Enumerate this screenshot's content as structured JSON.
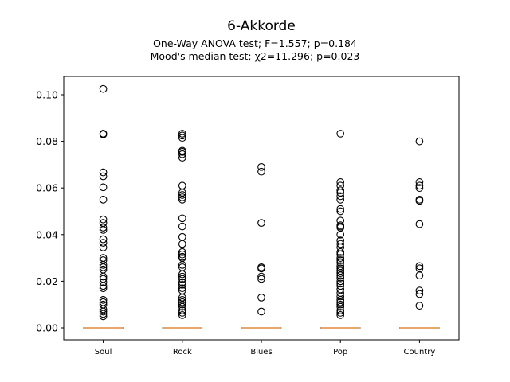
{
  "chart_data": {
    "type": "box",
    "title": "6-Akkorde",
    "subtitle_lines": [
      "One-Way ANOVA test; F=1.557; p=0.184",
      "Mood's median test; χ2=11.296; p=0.023"
    ],
    "categories": [
      "Soul",
      "Rock",
      "Blues",
      "Pop",
      "Country"
    ],
    "ylim": [
      -0.005,
      0.107
    ],
    "yticks": [
      0.0,
      0.02,
      0.04,
      0.06,
      0.08,
      0.1
    ],
    "ytick_labels": [
      "0.00",
      "0.02",
      "0.04",
      "0.06",
      "0.08",
      "0.10"
    ],
    "grid": false,
    "median_color": "#e08a3c",
    "boxes": [
      {
        "category": "Soul",
        "q1": 0,
        "median": 0,
        "q3": 0,
        "whisker_low": 0,
        "whisker_high": 0,
        "outliers": [
          0.1025,
          0.0833,
          0.083,
          0.0667,
          0.065,
          0.0603,
          0.055,
          0.0465,
          0.045,
          0.043,
          0.042,
          0.038,
          0.0365,
          0.0345,
          0.03,
          0.029,
          0.027,
          0.026,
          0.025,
          0.022,
          0.021,
          0.0195,
          0.018,
          0.017,
          0.012,
          0.011,
          0.01,
          0.008,
          0.007,
          0.006,
          0.005
        ]
      },
      {
        "category": "Rock",
        "q1": 0,
        "median": 0,
        "q3": 0,
        "whisker_low": 0,
        "whisker_high": 0,
        "outliers": [
          0.0833,
          0.0825,
          0.0815,
          0.076,
          0.0755,
          0.0745,
          0.073,
          0.061,
          0.058,
          0.057,
          0.056,
          0.055,
          0.047,
          0.0435,
          0.039,
          0.036,
          0.0325,
          0.0315,
          0.0305,
          0.03,
          0.027,
          0.026,
          0.023,
          0.022,
          0.021,
          0.0195,
          0.0185,
          0.017,
          0.016,
          0.013,
          0.012,
          0.011,
          0.01,
          0.009,
          0.0075,
          0.0065,
          0.0055
        ]
      },
      {
        "category": "Blues",
        "q1": 0,
        "median": 0,
        "q3": 0,
        "whisker_low": 0,
        "whisker_high": 0,
        "outliers": [
          0.069,
          0.067,
          0.045,
          0.026,
          0.0255,
          0.022,
          0.021,
          0.013,
          0.007
        ]
      },
      {
        "category": "Pop",
        "q1": 0,
        "median": 0,
        "q3": 0,
        "whisker_low": 0,
        "whisker_high": 0,
        "outliers": [
          0.0833,
          0.0625,
          0.061,
          0.059,
          0.058,
          0.0565,
          0.055,
          0.051,
          0.05,
          0.046,
          0.044,
          0.0435,
          0.043,
          0.04,
          0.0375,
          0.036,
          0.0345,
          0.0325,
          0.0315,
          0.03,
          0.029,
          0.028,
          0.0265,
          0.0255,
          0.0245,
          0.0235,
          0.0225,
          0.0215,
          0.02,
          0.019,
          0.018,
          0.0165,
          0.015,
          0.0135,
          0.012,
          0.011,
          0.01,
          0.009,
          0.0075,
          0.0065,
          0.0055
        ]
      },
      {
        "category": "Country",
        "q1": 0,
        "median": 0,
        "q3": 0,
        "whisker_low": 0,
        "whisker_high": 0,
        "outliers": [
          0.08,
          0.0625,
          0.061,
          0.06,
          0.055,
          0.0545,
          0.0445,
          0.0265,
          0.0255,
          0.0225,
          0.016,
          0.0145,
          0.0095
        ]
      }
    ]
  }
}
